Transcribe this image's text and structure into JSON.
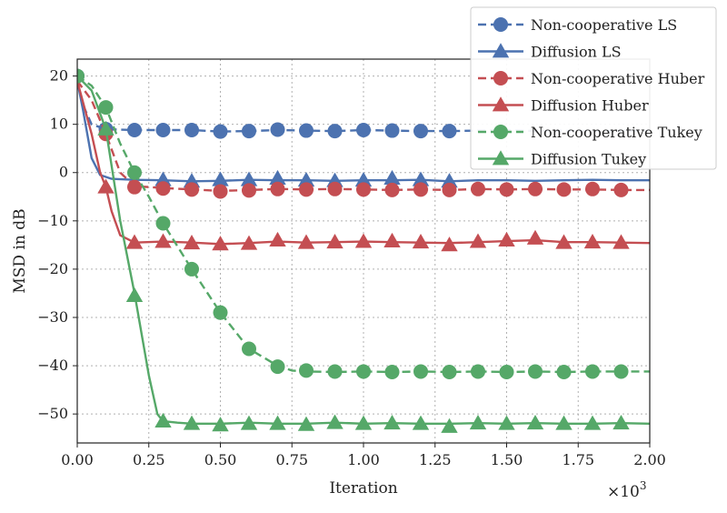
{
  "chart_data": {
    "type": "line",
    "title": "",
    "xlabel": "Iteration",
    "ylabel": "MSD in dB",
    "x_multiplier_label": "×10",
    "x_multiplier_exp": "3",
    "xlim": [
      0,
      2.0
    ],
    "ylim": [
      -56,
      23.5
    ],
    "xticks": [
      0.0,
      0.25,
      0.5,
      0.75,
      1.0,
      1.25,
      1.5,
      1.75,
      2.0
    ],
    "xtick_labels": [
      "0.00",
      "0.25",
      "0.50",
      "0.75",
      "1.00",
      "1.25",
      "1.50",
      "1.75",
      "2.00"
    ],
    "yticks": [
      20,
      10,
      0,
      -10,
      -20,
      -30,
      -40,
      -50
    ],
    "ytick_labels": [
      "20",
      "10",
      "0",
      "−10",
      "−20",
      "−30",
      "−40",
      "−50"
    ],
    "grid": true,
    "legend_position": "top-right",
    "series": [
      {
        "name": "Non-cooperative LS",
        "color": "#4c72b0",
        "dash": "dashed",
        "marker": "circle",
        "x": [
          0,
          0.02,
          0.05,
          0.1,
          0.2,
          0.3,
          0.4,
          0.5,
          0.6,
          0.7,
          0.8,
          0.9,
          1.0,
          1.1,
          1.2,
          1.3,
          1.4,
          1.5,
          1.6,
          1.7,
          1.8,
          1.9,
          2.0
        ],
        "y": [
          19,
          14,
          10,
          9,
          8.8,
          8.8,
          8.8,
          8.5,
          8.6,
          8.8,
          8.7,
          8.6,
          8.8,
          8.7,
          8.6,
          8.6,
          8.7,
          8.8,
          8.6,
          8.7,
          8.6,
          8.7,
          8.7
        ],
        "marker_x": [
          0.0,
          0.1,
          0.2,
          0.3,
          0.4,
          0.5,
          0.6,
          0.7,
          0.8,
          0.9,
          1.0,
          1.1,
          1.2,
          1.3
        ],
        "marker_y": [
          20,
          9,
          8.8,
          8.8,
          8.8,
          8.5,
          8.6,
          8.9,
          8.7,
          8.6,
          8.8,
          8.7,
          8.6,
          8.6
        ]
      },
      {
        "name": "Diffusion LS",
        "color": "#4c72b0",
        "dash": "solid",
        "marker": "triangle",
        "x": [
          0,
          0.02,
          0.05,
          0.08,
          0.12,
          0.2,
          0.3,
          0.4,
          0.5,
          0.6,
          0.7,
          0.8,
          0.9,
          1.0,
          1.1,
          1.2,
          1.3,
          1.4,
          1.5,
          1.6,
          1.7,
          1.8,
          1.9,
          2.0
        ],
        "y": [
          19,
          13,
          3,
          -0.5,
          -1.3,
          -1.5,
          -1.6,
          -1.8,
          -1.7,
          -1.5,
          -1.6,
          -1.6,
          -1.7,
          -1.6,
          -1.6,
          -1.5,
          -1.8,
          -1.6,
          -1.6,
          -1.7,
          -1.6,
          -1.5,
          -1.6,
          -1.6
        ],
        "marker_x": [
          0.3,
          0.4,
          0.5,
          0.6,
          0.7,
          0.8,
          0.9,
          1.0,
          1.1,
          1.2,
          1.3
        ],
        "marker_y": [
          -1.5,
          -1.8,
          -1.5,
          -1.5,
          -1.2,
          -1.6,
          -1.7,
          -1.6,
          -1.2,
          -1.5,
          -1.8
        ]
      },
      {
        "name": "Non-cooperative Huber",
        "color": "#c44e52",
        "dash": "dashed",
        "marker": "circle",
        "x": [
          0,
          0.05,
          0.1,
          0.15,
          0.2,
          0.3,
          0.4,
          0.5,
          0.6,
          0.7,
          0.8,
          0.9,
          1.0,
          1.1,
          1.2,
          1.3,
          1.4,
          1.5,
          1.6,
          1.7,
          1.8,
          1.9,
          2.0
        ],
        "y": [
          19,
          15,
          8,
          0,
          -2.8,
          -3.2,
          -3.5,
          -3.8,
          -3.6,
          -3.4,
          -3.5,
          -3.4,
          -3.5,
          -3.6,
          -3.5,
          -3.6,
          -3.4,
          -3.5,
          -3.4,
          -3.5,
          -3.5,
          -3.6,
          -3.6
        ],
        "marker_x": [
          0.1,
          0.2,
          0.3,
          0.4,
          0.5,
          0.6,
          0.7,
          0.8,
          0.9,
          1.0,
          1.1,
          1.2,
          1.3,
          1.4,
          1.5,
          1.6,
          1.7,
          1.8,
          1.9
        ],
        "marker_y": [
          8,
          -3,
          -3.3,
          -3.5,
          -3.9,
          -3.7,
          -3.4,
          -3.5,
          -3.4,
          -3.5,
          -3.6,
          -3.5,
          -3.6,
          -3.4,
          -3.5,
          -3.4,
          -3.5,
          -3.4,
          -3.6
        ]
      },
      {
        "name": "Diffusion Huber",
        "color": "#c44e52",
        "dash": "solid",
        "marker": "triangle",
        "x": [
          0,
          0.05,
          0.08,
          0.1,
          0.12,
          0.15,
          0.2,
          0.3,
          0.4,
          0.5,
          0.6,
          0.7,
          0.8,
          0.9,
          1.0,
          1.1,
          1.2,
          1.3,
          1.4,
          1.5,
          1.6,
          1.7,
          1.8,
          1.9,
          2.0
        ],
        "y": [
          19,
          8,
          0,
          -3,
          -8,
          -13,
          -14.5,
          -14.3,
          -14.5,
          -14.8,
          -14.6,
          -14.3,
          -14.5,
          -14.4,
          -14.3,
          -14.4,
          -14.5,
          -14.6,
          -14.4,
          -14.2,
          -14.0,
          -14.4,
          -14.4,
          -14.5,
          -14.6
        ],
        "marker_x": [
          0.1,
          0.2,
          0.3,
          0.4,
          0.5,
          0.6,
          0.7,
          0.8,
          0.9,
          1.0,
          1.1,
          1.2,
          1.3,
          1.4,
          1.5,
          1.6,
          1.7,
          1.8,
          1.9
        ],
        "marker_y": [
          -3,
          -14.5,
          -14.3,
          -14.6,
          -14.8,
          -14.7,
          -14.0,
          -14.5,
          -14.4,
          -14.3,
          -14.2,
          -14.4,
          -15.0,
          -14.3,
          -14.0,
          -13.6,
          -14.5,
          -14.4,
          -14.5
        ]
      },
      {
        "name": "Non-cooperative Tukey",
        "color": "#55a868",
        "dash": "dashed",
        "marker": "circle",
        "x": [
          0,
          0.05,
          0.1,
          0.15,
          0.2,
          0.25,
          0.3,
          0.4,
          0.5,
          0.6,
          0.7,
          0.75,
          0.8,
          0.9,
          1.0,
          1.1,
          1.2,
          1.3,
          1.4,
          1.5,
          1.6,
          1.7,
          1.8,
          1.9,
          2.0
        ],
        "y": [
          20,
          18,
          13.5,
          6,
          0,
          -5,
          -10.5,
          -20,
          -29,
          -36.5,
          -40,
          -41,
          -41.2,
          -41.3,
          -41.2,
          -41.3,
          -41.2,
          -41.3,
          -41.2,
          -41.3,
          -41.2,
          -41.3,
          -41.2,
          -41.2,
          -41.2
        ],
        "marker_x": [
          0.0,
          0.1,
          0.2,
          0.3,
          0.4,
          0.5,
          0.6,
          0.7,
          0.8,
          0.9,
          1.0,
          1.1,
          1.2,
          1.3,
          1.4,
          1.5,
          1.6,
          1.7,
          1.8,
          1.9
        ],
        "marker_y": [
          20,
          13.5,
          0,
          -10.5,
          -20,
          -29,
          -36.5,
          -40.2,
          -41,
          -41.2,
          -41.2,
          -41.3,
          -41.2,
          -41.3,
          -41.2,
          -41.3,
          -41.2,
          -41.3,
          -41.2,
          -41.2
        ]
      },
      {
        "name": "Diffusion Tukey",
        "color": "#55a868",
        "dash": "solid",
        "marker": "triangle",
        "x": [
          0,
          0.05,
          0.1,
          0.15,
          0.2,
          0.25,
          0.28,
          0.3,
          0.35,
          0.4,
          0.5,
          0.6,
          0.7,
          0.8,
          0.9,
          1.0,
          1.1,
          1.2,
          1.3,
          1.4,
          1.5,
          1.6,
          1.7,
          1.8,
          1.9,
          2.0
        ],
        "y": [
          20,
          17,
          9,
          -10,
          -25,
          -42,
          -50,
          -51.5,
          -51.8,
          -52,
          -52,
          -51.8,
          -52,
          -52,
          -51.8,
          -52,
          -51.9,
          -52,
          -52,
          -51.9,
          -52,
          -51.9,
          -52,
          -52,
          -51.9,
          -52
        ],
        "marker_x": [
          0.1,
          0.2,
          0.3,
          0.4,
          0.5,
          0.6,
          0.7,
          0.8,
          0.9,
          1.0,
          1.1,
          1.2,
          1.3,
          1.4,
          1.5,
          1.6,
          1.7,
          1.8,
          1.9
        ],
        "marker_y": [
          9,
          -25.5,
          -51.5,
          -52,
          -52.3,
          -52,
          -52,
          -52.2,
          -51.8,
          -52,
          -51.9,
          -52,
          -52.6,
          -51.9,
          -52,
          -51.9,
          -52,
          -52,
          -51.9
        ]
      }
    ]
  }
}
